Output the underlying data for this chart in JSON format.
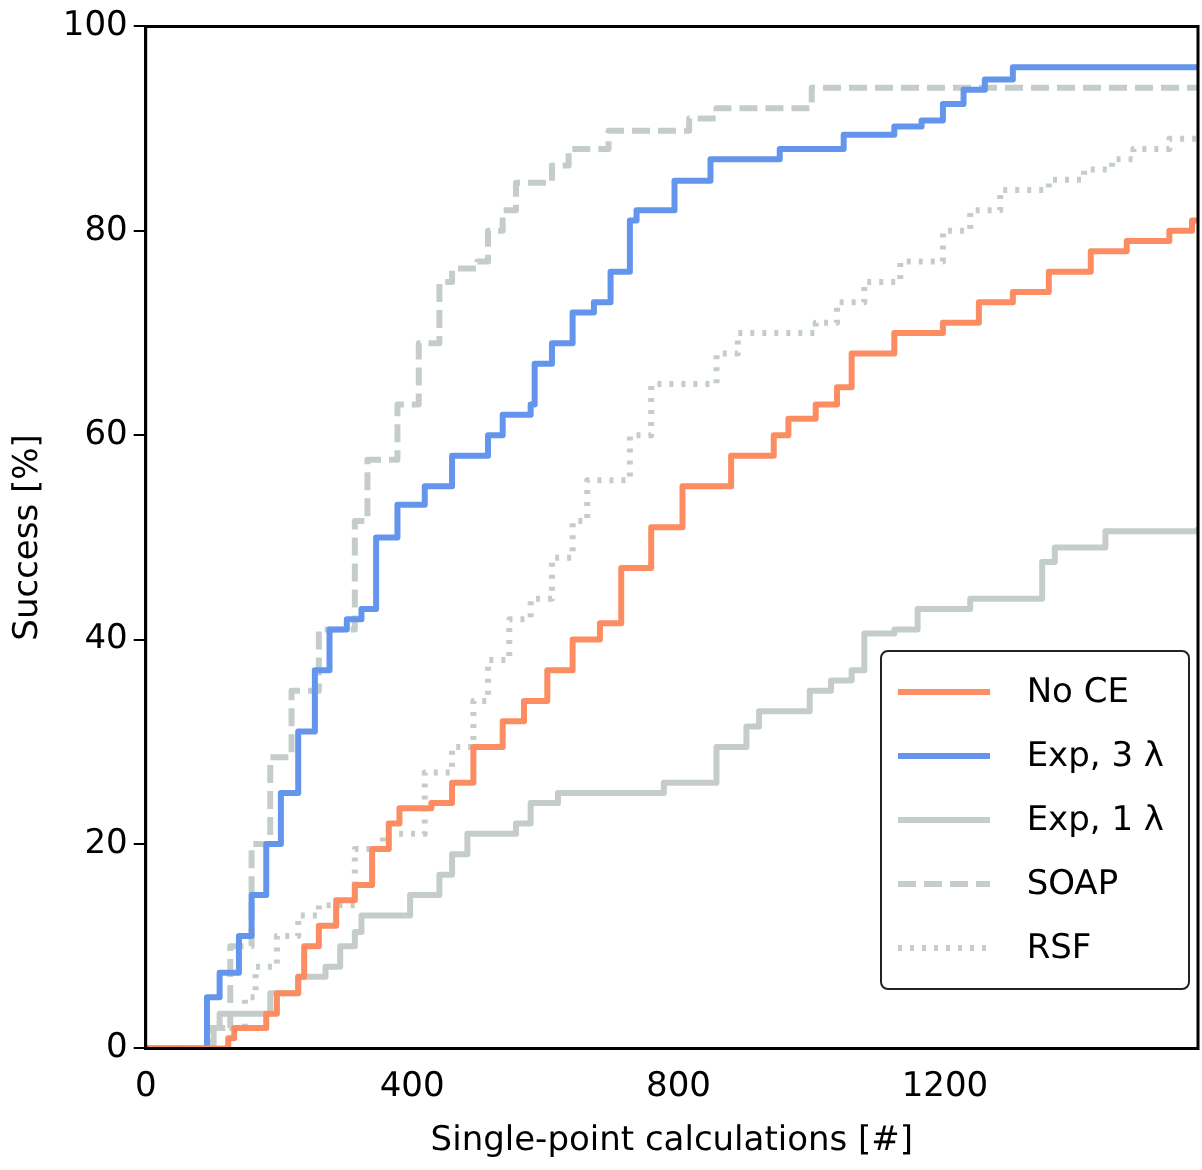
{
  "chart_data": {
    "type": "step",
    "xlabel": "Single-point calculations [#]",
    "ylabel": "Success [%]",
    "xlim": [
      0,
      1580
    ],
    "ylim": [
      0,
      100
    ],
    "xticks": [
      0,
      400,
      800,
      1200
    ],
    "yticks": [
      0,
      20,
      40,
      60,
      80,
      100
    ],
    "grid": false,
    "legend": "bottom right",
    "marker": "none",
    "series": [
      {
        "name": "No CE",
        "color": "#fc8d62",
        "line_style": "solid",
        "x": [
          0,
          124,
          133,
          181,
          197,
          229,
          238,
          260,
          286,
          314,
          340,
          365,
          381,
          429,
          460,
          492,
          536,
          568,
          603,
          641,
          682,
          714,
          759,
          806,
          879,
          943,
          965,
          1006,
          1038,
          1060,
          1124,
          1197,
          1251,
          1302,
          1356,
          1419,
          1473,
          1537,
          1571,
          1580
        ],
        "values": [
          0,
          1,
          2,
          3.4,
          5.4,
          7,
          10,
          12,
          14.5,
          16,
          19.5,
          22,
          23.5,
          24,
          26,
          29.5,
          32,
          34,
          37,
          40,
          41.6,
          47,
          51,
          55,
          58,
          60,
          61.6,
          63,
          64.7,
          68,
          70,
          71,
          73,
          74,
          76,
          78,
          79,
          80,
          81,
          81
        ]
      },
      {
        "name": "Exp, 3 λ",
        "color": "#6495ed",
        "line_style": "solid",
        "x": [
          0,
          80,
          92,
          111,
          140,
          159,
          181,
          203,
          229,
          254,
          276,
          302,
          324,
          346,
          378,
          419,
          460,
          514,
          536,
          578,
          584,
          610,
          641,
          673,
          698,
          727,
          737,
          794,
          848,
          952,
          1048,
          1124,
          1165,
          1197,
          1228,
          1260,
          1302,
          1580
        ],
        "values": [
          0,
          0,
          5,
          7.4,
          11,
          15,
          20,
          25,
          31,
          37,
          41,
          42,
          43,
          50,
          53.2,
          55,
          58,
          60,
          62,
          63,
          67,
          69,
          72,
          73,
          76,
          81,
          82,
          84.9,
          87,
          88,
          89.4,
          90.2,
          90.8,
          92.4,
          93.8,
          94.8,
          96,
          96
        ]
      },
      {
        "name": "Exp, 1 λ",
        "color": "#c5cdcb",
        "line_style": "solid",
        "x": [
          0,
          102,
          111,
          187,
          229,
          270,
          292,
          314,
          324,
          397,
          441,
          460,
          483,
          556,
          578,
          619,
          778,
          857,
          902,
          921,
          997,
          1029,
          1060,
          1079,
          1124,
          1159,
          1238,
          1346,
          1365,
          1441,
          1580
        ],
        "values": [
          0,
          2,
          3.4,
          5.4,
          7,
          8,
          10,
          11.4,
          13,
          15,
          17,
          19,
          21,
          22,
          24,
          25,
          26,
          29.5,
          31.5,
          33,
          35,
          36,
          37,
          40.6,
          41,
          43,
          44,
          47.6,
          49,
          50.6,
          51
        ]
      },
      {
        "name": "SOAP",
        "color": "#c5cdcb",
        "line_style": "dashed",
        "x": [
          0,
          80,
          95,
          127,
          159,
          187,
          219,
          260,
          314,
          333,
          378,
          410,
          441,
          460,
          498,
          514,
          536,
          556,
          610,
          635,
          695,
          816,
          857,
          1000,
          1580
        ],
        "values": [
          0,
          0,
          2,
          10,
          20,
          28.5,
          35,
          41,
          51.6,
          57.6,
          63,
          69,
          75,
          76.3,
          77,
          80,
          82,
          84.7,
          86.4,
          88,
          89.8,
          91,
          92,
          94,
          94
        ]
      },
      {
        "name": "RSF",
        "color": "#c5cdcb",
        "line_style": "dotted",
        "x": [
          0,
          100,
          149,
          165,
          197,
          229,
          260,
          314,
          356,
          419,
          460,
          492,
          514,
          546,
          578,
          610,
          641,
          663,
          727,
          759,
          857,
          889,
          1006,
          1038,
          1079,
          1133,
          1197,
          1238,
          1283,
          1356,
          1409,
          1451,
          1483,
          1537,
          1580
        ],
        "values": [
          0,
          2,
          5,
          8,
          11,
          13,
          14,
          19.5,
          21,
          27,
          29.5,
          34,
          38,
          42,
          44,
          48,
          51.6,
          55.6,
          60,
          65,
          68,
          70,
          71,
          73,
          75,
          77,
          80,
          82,
          84,
          85,
          86,
          87,
          88,
          89,
          89
        ]
      }
    ]
  }
}
